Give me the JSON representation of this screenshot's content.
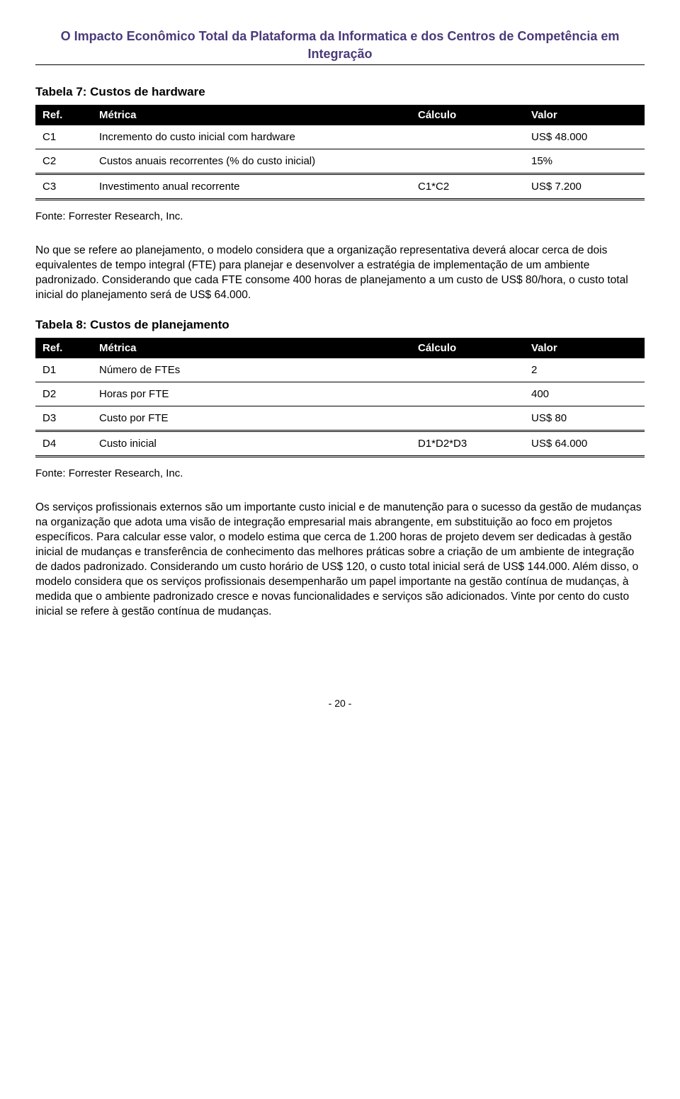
{
  "header": {
    "title_line1": "O Impacto Econômico Total da Plataforma da Informatica e dos Centros de Competência em",
    "title_line2": "Integração",
    "title_color": "#4b3a7a"
  },
  "table7": {
    "caption": "Tabela 7: Custos de hardware",
    "headers": {
      "ref": "Ref.",
      "metric": "Métrica",
      "calc": "Cálculo",
      "val": "Valor"
    },
    "rows": [
      {
        "ref": "C1",
        "metric": "Incremento do custo inicial com hardware",
        "calc": "",
        "val": "US$ 48.000"
      },
      {
        "ref": "C2",
        "metric": "Custos anuais recorrentes (% do custo inicial)",
        "calc": "",
        "val": "15%"
      },
      {
        "ref": "C3",
        "metric": "Investimento anual recorrente",
        "calc": "C1*C2",
        "val": "US$ 7.200"
      }
    ],
    "source": "Fonte: Forrester Research, Inc."
  },
  "para1": "No que se refere ao planejamento, o modelo considera que a organização representativa deverá alocar cerca de dois equivalentes de tempo integral (FTE) para planejar e desenvolver a estratégia de implementação de um ambiente padronizado. Considerando que cada FTE consome 400 horas de planejamento a um custo de US$ 80/hora, o custo total inicial do planejamento será de US$ 64.000.",
  "table8": {
    "caption": "Tabela 8: Custos de planejamento",
    "headers": {
      "ref": "Ref.",
      "metric": "Métrica",
      "calc": "Cálculo",
      "val": "Valor"
    },
    "rows": [
      {
        "ref": "D1",
        "metric": "Número de FTEs",
        "calc": "",
        "val": "2"
      },
      {
        "ref": "D2",
        "metric": "Horas por FTE",
        "calc": "",
        "val": "400"
      },
      {
        "ref": "D3",
        "metric": "Custo por FTE",
        "calc": "",
        "val": "US$ 80"
      },
      {
        "ref": "D4",
        "metric": "Custo inicial",
        "calc": "D1*D2*D3",
        "val": "US$ 64.000"
      }
    ],
    "source": "Fonte: Forrester Research, Inc."
  },
  "para2": "Os serviços profissionais externos são um importante custo inicial e de manutenção para o sucesso da gestão de mudanças na organização que adota uma visão de integração empresarial mais abrangente, em substituição ao foco em projetos específicos. Para calcular esse valor, o modelo estima que cerca de 1.200 horas de projeto devem ser dedicadas à gestão inicial de mudanças e transferência de conhecimento das melhores práticas sobre a criação de um ambiente de integração de dados padronizado. Considerando um custo horário de US$ 120, o custo total inicial será de US$ 144.000. Além disso, o modelo considera que os serviços profissionais desempenharão um papel importante na gestão contínua de mudanças, à medida que o ambiente padronizado cresce e novas funcionalidades e serviços são adicionados. Vinte por cento do custo inicial se refere à gestão contínua de mudanças.",
  "page_number": "- 20 -"
}
